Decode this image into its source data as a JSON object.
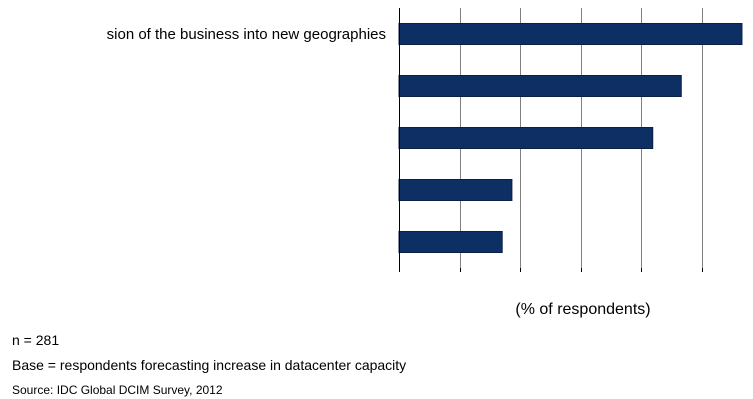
{
  "chart_data": {
    "type": "bar",
    "orientation": "horizontal",
    "categories": [
      "sion of the business into new geographies",
      "",
      "",
      "",
      ""
    ],
    "values": [
      56.5,
      46.5,
      41.8,
      18.6,
      17.0
    ],
    "xlim": [
      0,
      57
    ],
    "xlabel": "(% of respondents)",
    "ylabel": "",
    "grid": true,
    "colors": {
      "bar": "#0e2f63",
      "bar_stroke": "#0a1f44",
      "grid": "#808080",
      "axis": "#000000"
    }
  },
  "notes": {
    "n": "n = 281",
    "base": "Base = respondents forecasting increase in datacenter capacity",
    "source": "Source: IDC Global DCIM Survey, 2012"
  }
}
